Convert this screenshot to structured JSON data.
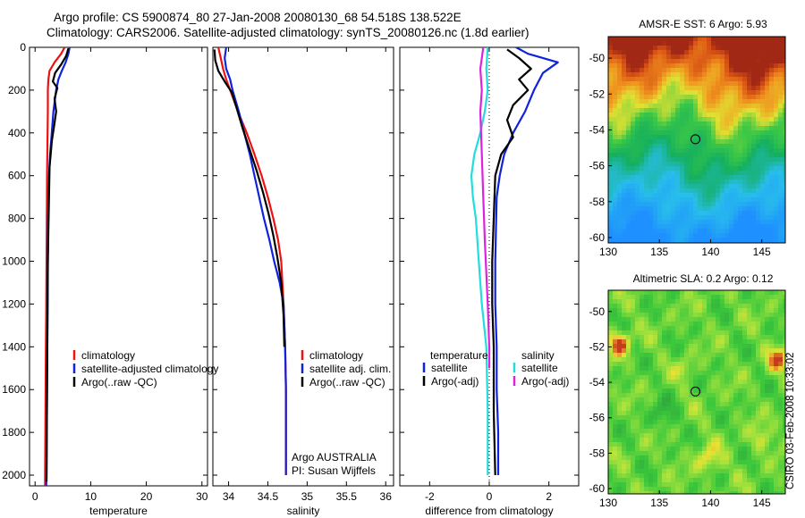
{
  "titles": {
    "line1": "Argo profile: CS 5900874_80 27-Jan-2008 20080130_68 54.518S 138.522E",
    "line2": "Climatology: CARS2006. Satellite-adjusted climatology: synTS_20080126.nc (1.8d earlier)"
  },
  "credit": "CSIRO 03-Feb-2008 10:33:02",
  "colors": {
    "climatology": "#ee1111",
    "satellite": "#1122dd",
    "argo": "#000000",
    "salinity_satellite": "#22dddd",
    "salinity_argo": "#dd22dd"
  },
  "chart_data": [
    {
      "type": "line",
      "id": "temperature",
      "xlabel": "temperature",
      "ylabel": "",
      "xlim": [
        -1,
        31
      ],
      "ylim": [
        2050,
        0
      ],
      "xticks": [
        0,
        10,
        20,
        30
      ],
      "yticks": [
        0,
        200,
        400,
        600,
        800,
        1000,
        1200,
        1400,
        1600,
        1800,
        2000
      ],
      "legend": [
        "climatology",
        "satellite-adjusted climatology",
        "Argo(..raw -QC)"
      ],
      "legend_position": "bottom-right",
      "series": [
        {
          "name": "climatology",
          "color": "#ee1111",
          "x": [
            5.3,
            4.7,
            3.5,
            2.6,
            2.4,
            2.3,
            2.3,
            2.25,
            2.2,
            2.15,
            2.1,
            2.05,
            2.0,
            1.95,
            1.9,
            1.85,
            1.8,
            1.8
          ],
          "y": [
            0,
            30,
            70,
            110,
            150,
            200,
            300,
            400,
            500,
            600,
            800,
            1000,
            1200,
            1400,
            1600,
            1800,
            2000,
            2050
          ]
        },
        {
          "name": "satellite-adjusted climatology",
          "color": "#1122dd",
          "x": [
            6.2,
            6.0,
            5.5,
            4.8,
            4.2,
            3.8,
            3.3,
            3.0,
            2.7,
            2.5,
            2.35,
            2.3,
            2.25,
            2.2,
            2.15,
            2.1,
            2.05,
            2.0
          ],
          "y": [
            0,
            30,
            70,
            110,
            150,
            200,
            300,
            400,
            500,
            600,
            800,
            1000,
            1200,
            1400,
            1600,
            1800,
            2000,
            2050
          ]
        },
        {
          "name": "Argo(..raw -QC)",
          "color": "#000000",
          "x": [
            6.0,
            5.6,
            4.7,
            3.6,
            3.2,
            4.0,
            3.5,
            3.8,
            3.4,
            3.0,
            2.6,
            2.5,
            2.4,
            2.3,
            2.25,
            2.2,
            2.15,
            2.1,
            2.05
          ],
          "y": [
            5,
            40,
            80,
            120,
            160,
            190,
            240,
            300,
            370,
            440,
            560,
            700,
            850,
            1000,
            1200,
            1400,
            1600,
            1800,
            2030
          ]
        }
      ]
    },
    {
      "type": "line",
      "id": "salinity",
      "xlabel": "salinity",
      "ylabel": "",
      "xlim": [
        33.8,
        36.1
      ],
      "ylim": [
        2050,
        0
      ],
      "xticks": [
        34,
        34.5,
        35,
        35.5,
        36
      ],
      "legend": [
        "climatology",
        "satellite adj. clim.",
        "Argo(..raw -QC)"
      ],
      "legend_position": "bottom-right",
      "annotation": [
        "Argo AUSTRALIA",
        "PI: Susan Wijffels"
      ],
      "series": [
        {
          "name": "climatology",
          "color": "#ee1111",
          "x": [
            33.87,
            33.9,
            33.93,
            33.97,
            34.02,
            34.12,
            34.23,
            34.33,
            34.42,
            34.5,
            34.57,
            34.63,
            34.67,
            34.7,
            34.72,
            34.73,
            34.73
          ],
          "y": [
            0,
            50,
            100,
            150,
            200,
            300,
            400,
            500,
            600,
            700,
            800,
            900,
            1000,
            1200,
            1400,
            1600,
            2000
          ]
        },
        {
          "name": "satellite adj. clim.",
          "color": "#1122dd",
          "x": [
            33.97,
            33.95,
            33.97,
            34.02,
            34.05,
            34.13,
            34.2,
            34.27,
            34.33,
            34.39,
            34.45,
            34.52,
            34.58,
            34.65,
            34.7,
            34.72,
            34.73,
            34.73
          ],
          "y": [
            0,
            50,
            100,
            150,
            200,
            300,
            400,
            500,
            600,
            700,
            800,
            900,
            1000,
            1100,
            1200,
            1400,
            1600,
            2000
          ]
        },
        {
          "name": "Argo(..raw -QC)",
          "color": "#000000",
          "x": [
            33.82,
            33.83,
            33.87,
            33.95,
            34.04,
            34.1,
            34.18,
            34.27,
            34.36,
            34.44,
            34.51,
            34.57,
            34.62,
            34.67,
            34.7,
            34.71
          ],
          "y": [
            10,
            60,
            110,
            160,
            210,
            280,
            380,
            480,
            580,
            680,
            780,
            880,
            980,
            1100,
            1250,
            1400
          ]
        }
      ]
    },
    {
      "type": "line",
      "id": "difference",
      "xlabel": "difference from climatology",
      "ylabel": "",
      "xlim": [
        -3,
        3
      ],
      "ylim": [
        2050,
        0
      ],
      "xticks": [
        -2,
        0,
        2
      ],
      "zero_line": "dotted",
      "legend_title_left": "temperature",
      "legend_title_right": "salinity",
      "legend": [
        "satellite",
        "Argo(-adj)",
        "satellite",
        "Argo(-adj)"
      ],
      "legend_position": "bottom",
      "series": [
        {
          "name": "satellite",
          "group": "temperature",
          "color": "#1122dd",
          "x": [
            0.9,
            1.3,
            2.3,
            1.8,
            1.5,
            1.2,
            0.8,
            0.5,
            0.35,
            0.25,
            0.2,
            0.2,
            0.25,
            0.25,
            0.3,
            0.3,
            0.3
          ],
          "y": [
            0,
            30,
            70,
            120,
            200,
            300,
            400,
            500,
            600,
            700,
            1000,
            1200,
            1400,
            1600,
            1800,
            1900,
            2000
          ]
        },
        {
          "name": "Argo(-adj)",
          "group": "temperature",
          "color": "#000000",
          "x": [
            0.6,
            1.0,
            1.4,
            1.0,
            1.3,
            0.8,
            0.6,
            0.8,
            0.4,
            0.2,
            0.15,
            0.1,
            0.1,
            0.15,
            0.15,
            0.2
          ],
          "y": [
            10,
            50,
            100,
            150,
            200,
            270,
            340,
            420,
            500,
            600,
            800,
            1000,
            1200,
            1400,
            1700,
            2000
          ]
        },
        {
          "name": "satellite",
          "group": "salinity",
          "color": "#22dddd",
          "x": [
            -0.05,
            -0.1,
            -0.05,
            -0.15,
            -0.3,
            -0.5,
            -0.6,
            -0.55,
            -0.45,
            -0.35,
            -0.25,
            -0.1,
            -0.05,
            -0.05
          ],
          "y": [
            0,
            100,
            200,
            300,
            400,
            500,
            600,
            700,
            800,
            1000,
            1200,
            1400,
            1700,
            2000
          ]
        },
        {
          "name": "Argo(-adj)",
          "group": "salinity",
          "color": "#dd22dd",
          "x": [
            -0.2,
            -0.25,
            -0.3,
            -0.25,
            -0.3,
            -0.25,
            -0.2,
            -0.15,
            -0.05,
            0.0,
            0.0
          ],
          "y": [
            0,
            50,
            100,
            200,
            300,
            500,
            700,
            900,
            1200,
            1400,
            1500
          ]
        }
      ]
    },
    {
      "type": "heatmap",
      "id": "sst-map",
      "title": "AMSR-E SST: 6 Argo: 5.93",
      "xlim": [
        130,
        147.3
      ],
      "ylim": [
        -60.3,
        -48.8
      ],
      "xticks": [
        130,
        135,
        140,
        145
      ],
      "yticks": [
        -50,
        -52,
        -54,
        -56,
        -58,
        -60
      ],
      "marker": [
        138.52,
        -54.52
      ]
    },
    {
      "type": "heatmap",
      "id": "sla-map",
      "title": "Altimetric SLA: 0.2 Argo: 0.12",
      "xlim": [
        130,
        147.3
      ],
      "ylim": [
        -60.3,
        -48.8
      ],
      "xticks": [
        130,
        135,
        140,
        145
      ],
      "yticks": [
        -50,
        -52,
        -54,
        -56,
        -58,
        -60
      ],
      "marker": [
        138.52,
        -54.52
      ]
    }
  ]
}
